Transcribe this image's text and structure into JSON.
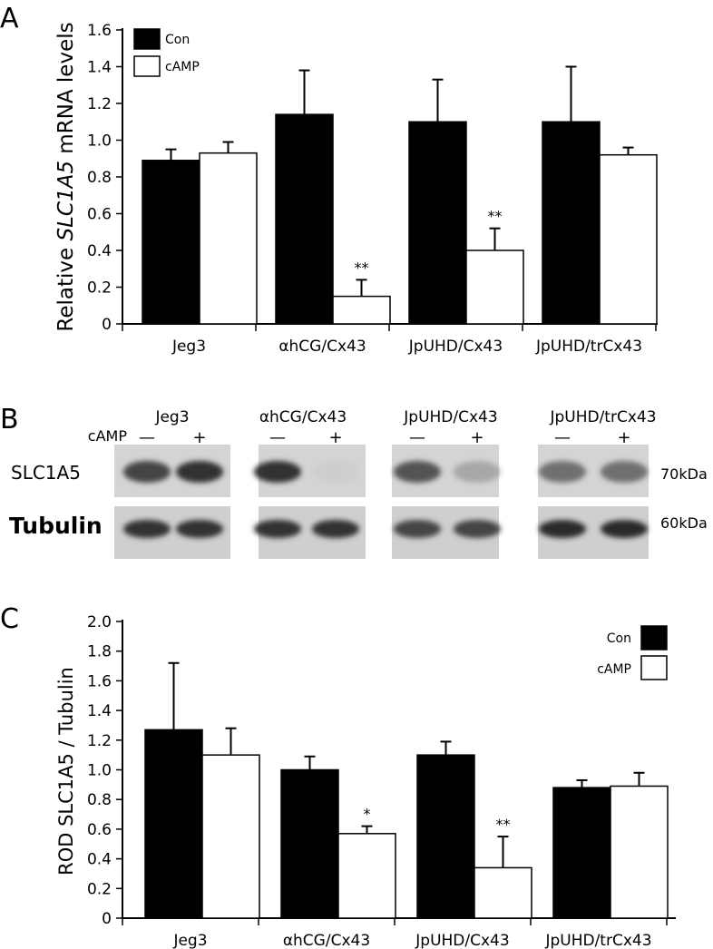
{
  "panel_labels": {
    "a": "A",
    "b": "B",
    "c": "C"
  },
  "chart_data": [
    {
      "panel": "A",
      "type": "bar",
      "ylabel_prefix": "Relative ",
      "ylabel_gene": "SLC1A5",
      "ylabel_suffix": " mRNA levels",
      "ylim": [
        0,
        1.6
      ],
      "yticks": [
        "0",
        "0.2",
        "0.4",
        "0.6",
        "0.8",
        "1.0",
        "1.2",
        "1.4",
        "1.6"
      ],
      "categories": [
        "Jeg3",
        "αhCG/Cx43",
        "JpUHD/Cx43",
        "JpUHD/trCx43"
      ],
      "legend_position": "top-left",
      "series": [
        {
          "name": "Con",
          "color": "#000000",
          "values": [
            0.89,
            1.14,
            1.1,
            1.1
          ],
          "errors": [
            0.06,
            0.24,
            0.23,
            0.3
          ],
          "annotations": [
            "",
            "",
            "",
            ""
          ]
        },
        {
          "name": "cAMP",
          "color": "#ffffff",
          "values": [
            0.93,
            0.15,
            0.4,
            0.92
          ],
          "errors": [
            0.06,
            0.09,
            0.12,
            0.04
          ],
          "annotations": [
            "",
            "**",
            "**",
            ""
          ]
        }
      ]
    },
    {
      "panel": "C",
      "type": "bar",
      "ylabel": "ROD SLC1A5 / Tubulin",
      "ylim": [
        0,
        2.0
      ],
      "yticks": [
        "0",
        "0.2",
        "0.4",
        "0.6",
        "0.8",
        "1.0",
        "1.2",
        "1.4",
        "1.6",
        "1.8",
        "2.0"
      ],
      "categories": [
        "Jeg3",
        "αhCG/Cx43",
        "JpUHD/Cx43",
        "JpUHD/trCx43"
      ],
      "legend_position": "top-right",
      "series": [
        {
          "name": "Con",
          "color": "#000000",
          "values": [
            1.27,
            1.0,
            1.1,
            0.88
          ],
          "errors": [
            0.45,
            0.09,
            0.09,
            0.05
          ],
          "annotations": [
            "",
            "",
            "",
            ""
          ]
        },
        {
          "name": "cAMP",
          "color": "#ffffff",
          "values": [
            1.1,
            0.57,
            0.34,
            0.89
          ],
          "errors": [
            0.18,
            0.05,
            0.21,
            0.09
          ],
          "annotations": [
            "",
            "*",
            "**",
            ""
          ]
        }
      ]
    }
  ],
  "blot": {
    "groups": [
      "Jeg3",
      "αhCG/Cx43",
      "JpUHD/Cx43",
      "JpUHD/trCx43"
    ],
    "treatment_label": "cAMP",
    "lane_signs": [
      "—",
      "+"
    ],
    "rows": [
      {
        "label": "SLC1A5",
        "size": "70kDa"
      },
      {
        "label": "Tubulin",
        "size": "60kDa"
      }
    ],
    "band_intensity": {
      "SLC1A5": [
        [
          0.75,
          0.85
        ],
        [
          0.85,
          0.05
        ],
        [
          0.7,
          0.35
        ],
        [
          0.6,
          0.6
        ]
      ],
      "Tubulin": [
        [
          0.85,
          0.85
        ],
        [
          0.85,
          0.85
        ],
        [
          0.75,
          0.75
        ],
        [
          0.9,
          0.9
        ]
      ]
    }
  }
}
